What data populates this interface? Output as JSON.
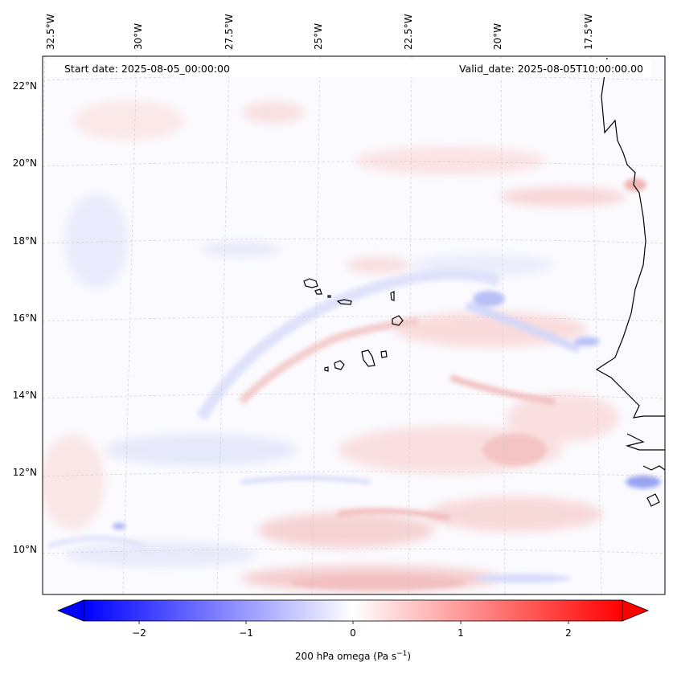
{
  "header": {
    "start_date": "Start date: 2025-08-05_00:00:00",
    "valid_date": "Valid_date: 2025-08-05T10:00:00.00"
  },
  "lon_labels": [
    "32.5°W",
    "30°W",
    "27.5°W",
    "25°W",
    "22.5°W",
    "20°W",
    "17.5°W"
  ],
  "lat_labels": [
    "22°N",
    "20°N",
    "18°N",
    "16°N",
    "14°N",
    "12°N",
    "10°N"
  ],
  "colorbar": {
    "ticks": [
      "−2",
      "−1",
      "0",
      "1",
      "2"
    ],
    "label_main": "200 hPa omega (Pa s",
    "label_exp": "−1",
    "label_end": ")",
    "colors": {
      "negative": "#0000ff",
      "zero": "#ffffff",
      "positive": "#ff0000"
    },
    "range": [
      -2.6,
      2.6
    ]
  }
}
